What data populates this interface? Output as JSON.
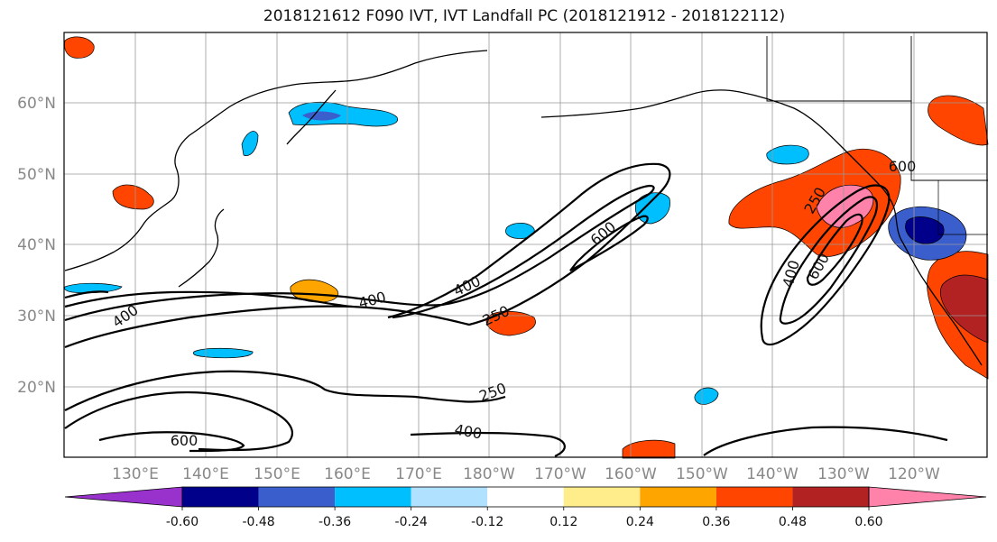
{
  "title": "2018121612 F090 IVT, IVT Landfall PC (2018121912 - 2018122112)",
  "lat_ticks": [
    "60°N",
    "50°N",
    "40°N",
    "30°N",
    "20°N"
  ],
  "lon_ticks": [
    "130°E",
    "140°E",
    "150°E",
    "160°E",
    "170°E",
    "180°W",
    "170°W",
    "160°W",
    "150°W",
    "140°W",
    "130°W",
    "120°W"
  ],
  "contour_labels": [
    "600",
    "400",
    "400",
    "250",
    "600",
    "400",
    "250",
    "600",
    "400",
    "250",
    "600",
    "400"
  ],
  "colorbar": {
    "colors": [
      "#9932CC",
      "#00008B",
      "#3A5FCD",
      "#00BFFF",
      "#B0E2FF",
      "#FFFFFF",
      "#FFEC8B",
      "#FFA500",
      "#FF4500",
      "#B22222",
      "#FF82AB"
    ],
    "tick_labels": [
      "-0.60",
      "-0.48",
      "-0.36",
      "-0.24",
      "-0.12",
      "0.12",
      "0.24",
      "0.36",
      "0.48",
      "0.60"
    ]
  }
}
